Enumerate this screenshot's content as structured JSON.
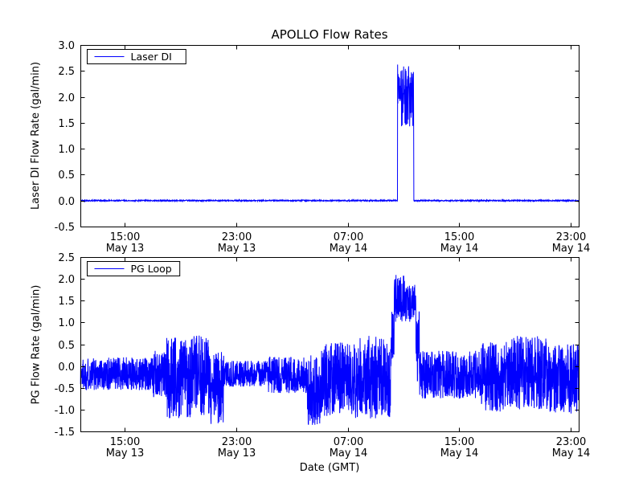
{
  "figure": {
    "title": "APOLLO Flow Rates",
    "background": "#ffffff",
    "line_color": "#0000ff",
    "axis_color": "#000000"
  },
  "chart_data": [
    {
      "type": "line",
      "title": "APOLLO Flow Rates",
      "ylabel": "Laser DI Flow Rate (gal/min)",
      "xlabel": "",
      "legend": "Laser DI",
      "legend_position": "upper left",
      "grid": false,
      "line_color": "#0000ff",
      "ylim": [
        -0.5,
        3.0
      ],
      "yticks": [
        -0.5,
        0.0,
        0.5,
        1.0,
        1.5,
        2.0,
        2.5,
        3.0
      ],
      "xlim": [
        0,
        35.8
      ],
      "xticks": [
        {
          "t": 3.2,
          "line1": "15:00",
          "line2": "May 13"
        },
        {
          "t": 11.2,
          "line1": "23:00",
          "line2": "May 13"
        },
        {
          "t": 19.2,
          "line1": "07:00",
          "line2": "May 14"
        },
        {
          "t": 27.2,
          "line1": "15:00",
          "line2": "May 14"
        },
        {
          "t": 35.2,
          "line1": "23:00",
          "line2": "May 14"
        }
      ],
      "n_points": 2400,
      "seed": 42,
      "segments": [
        {
          "t0": 0.0,
          "t1": 22.78,
          "mean": 0.0,
          "amp": 0.012
        },
        {
          "t0": 22.78,
          "t1": 23.05,
          "mean": 2.25,
          "amp": 0.4
        },
        {
          "t0": 23.05,
          "t1": 23.95,
          "mean": 2.0,
          "amp": 0.6
        },
        {
          "t0": 23.95,
          "t1": 35.8,
          "mean": 0.0,
          "amp": 0.012
        }
      ]
    },
    {
      "type": "line",
      "title": "",
      "ylabel": "PG Flow Rate (gal/min)",
      "xlabel": "Date (GMT)",
      "legend": "PG Loop",
      "legend_position": "upper left",
      "grid": false,
      "line_color": "#0000ff",
      "ylim": [
        -1.5,
        2.5
      ],
      "yticks": [
        -1.5,
        -1.0,
        -0.5,
        0.0,
        0.5,
        1.0,
        1.5,
        2.0,
        2.5
      ],
      "xlim": [
        0,
        35.8
      ],
      "xticks": [
        {
          "t": 3.2,
          "line1": "15:00",
          "line2": "May 13"
        },
        {
          "t": 11.2,
          "line1": "23:00",
          "line2": "May 13"
        },
        {
          "t": 19.2,
          "line1": "07:00",
          "line2": "May 14"
        },
        {
          "t": 27.2,
          "line1": "15:00",
          "line2": "May 14"
        },
        {
          "t": 35.2,
          "line1": "23:00",
          "line2": "May 14"
        }
      ],
      "n_points": 3200,
      "seed": 1337,
      "segments": [
        {
          "t0": 0.0,
          "t1": 5.2,
          "mean": -0.18,
          "amp": 0.38
        },
        {
          "t0": 5.2,
          "t1": 6.2,
          "mean": -0.2,
          "amp": 0.55
        },
        {
          "t0": 6.2,
          "t1": 9.2,
          "mean": -0.25,
          "amp": 0.95
        },
        {
          "t0": 9.2,
          "t1": 10.3,
          "mean": -0.5,
          "amp": 0.85
        },
        {
          "t0": 10.3,
          "t1": 13.5,
          "mean": -0.18,
          "amp": 0.3
        },
        {
          "t0": 13.5,
          "t1": 16.3,
          "mean": -0.2,
          "amp": 0.42
        },
        {
          "t0": 16.3,
          "t1": 17.3,
          "mean": -0.55,
          "amp": 0.8
        },
        {
          "t0": 17.3,
          "t1": 19.5,
          "mean": -0.3,
          "amp": 0.85
        },
        {
          "t0": 19.5,
          "t1": 22.3,
          "mean": -0.25,
          "amp": 0.95
        },
        {
          "t0": 22.3,
          "t1": 22.55,
          "mean": 0.6,
          "amp": 0.7
        },
        {
          "t0": 22.55,
          "t1": 23.3,
          "mean": 1.55,
          "amp": 0.55
        },
        {
          "t0": 23.3,
          "t1": 24.1,
          "mean": 1.45,
          "amp": 0.45
        },
        {
          "t0": 24.1,
          "t1": 24.35,
          "mean": 0.4,
          "amp": 0.9
        },
        {
          "t0": 24.35,
          "t1": 28.8,
          "mean": -0.2,
          "amp": 0.55
        },
        {
          "t0": 28.8,
          "t1": 31.0,
          "mean": -0.25,
          "amp": 0.8
        },
        {
          "t0": 31.0,
          "t1": 33.5,
          "mean": -0.15,
          "amp": 0.85
        },
        {
          "t0": 33.5,
          "t1": 35.8,
          "mean": -0.3,
          "amp": 0.8
        }
      ]
    }
  ]
}
